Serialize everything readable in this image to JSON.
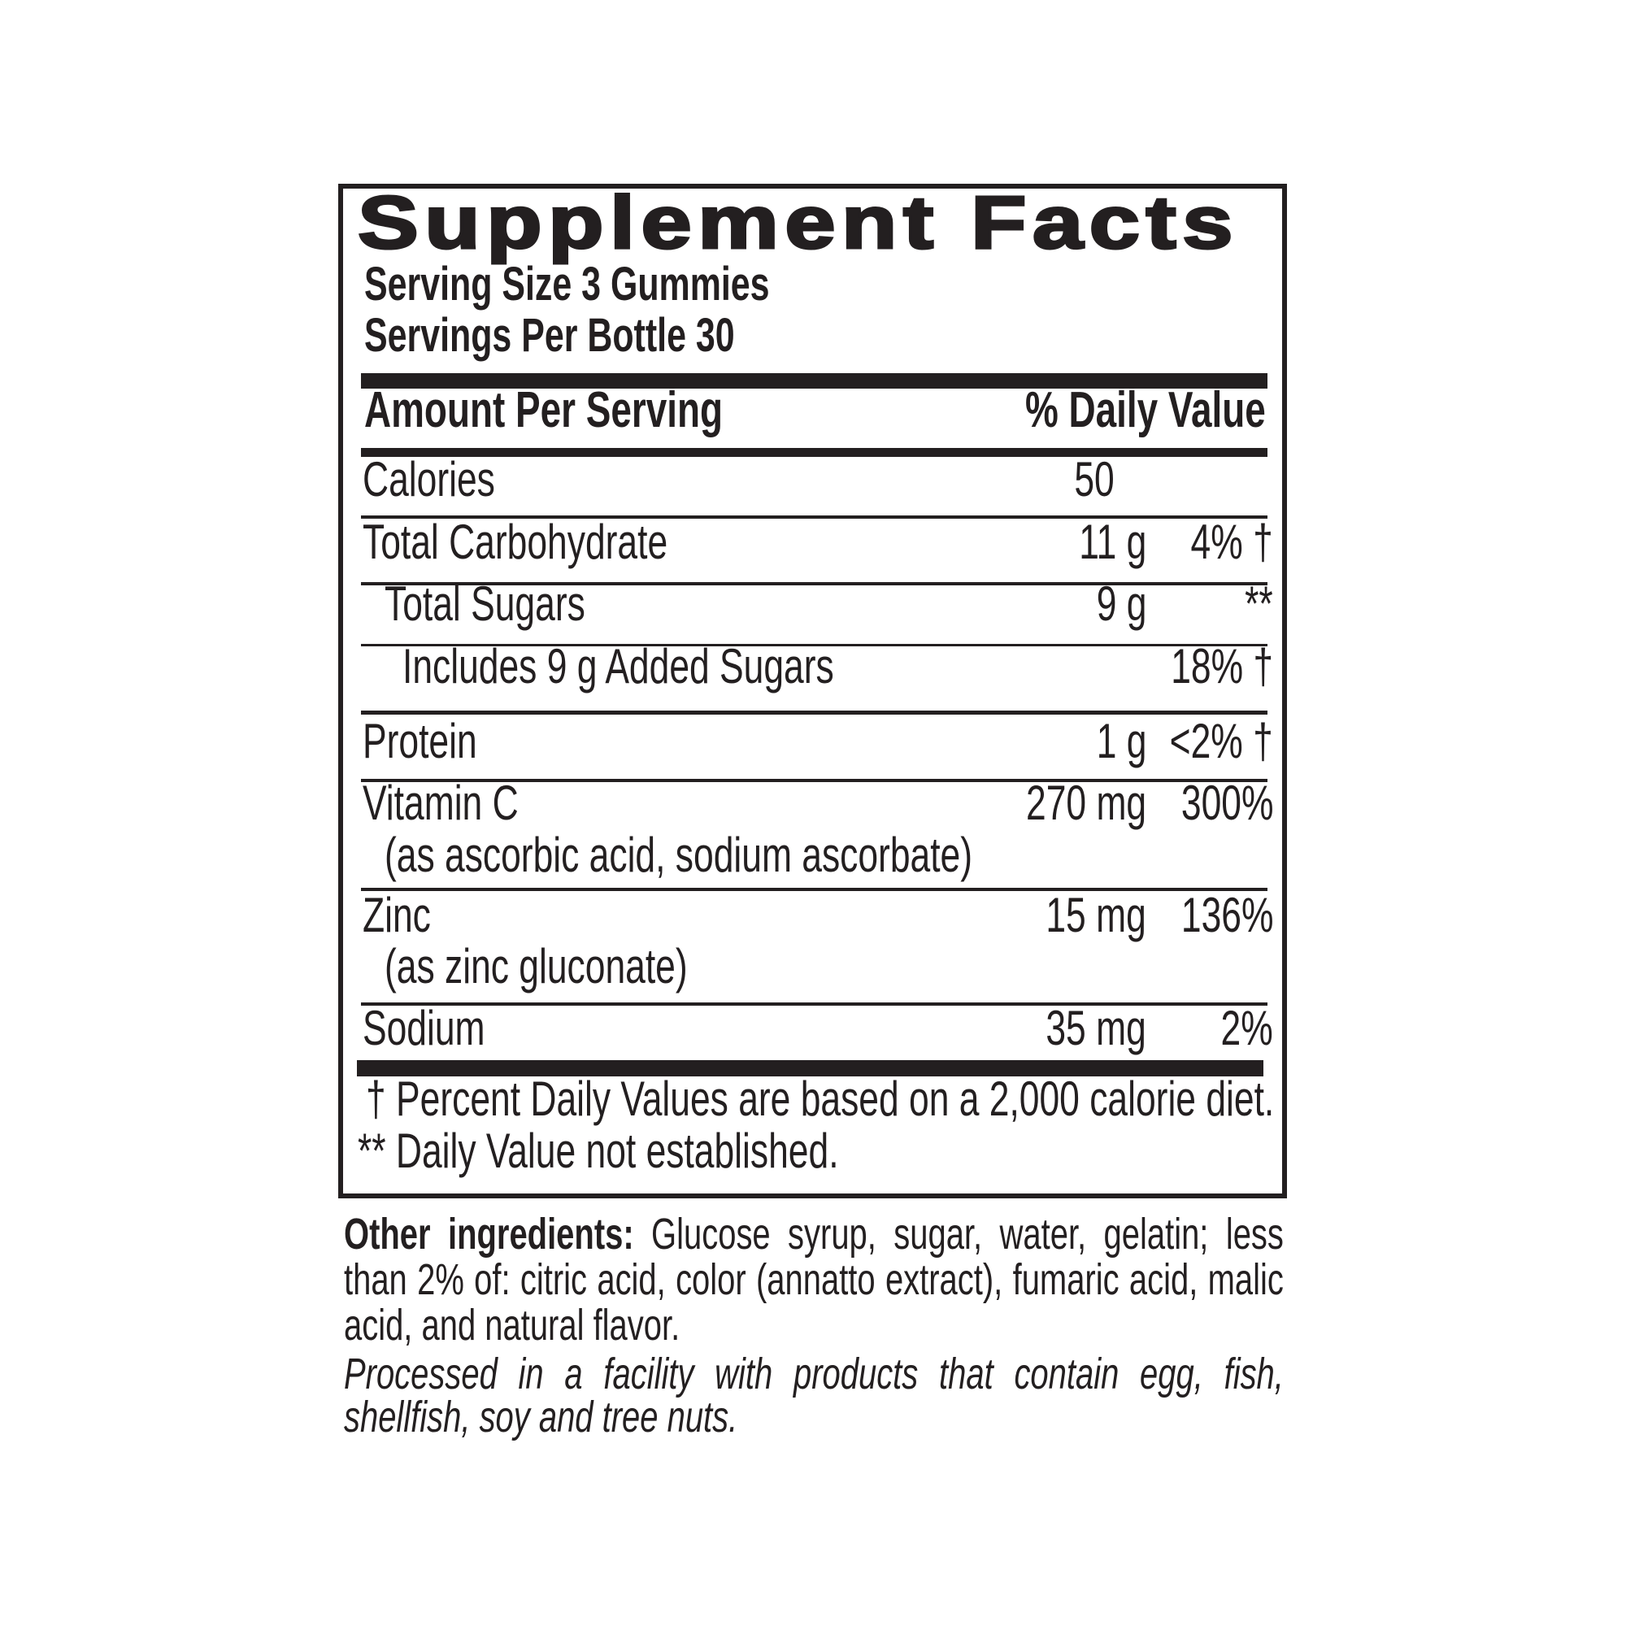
{
  "title": "Supplement Facts",
  "serving_size": "Serving Size 3 Gummies",
  "servings_per_container": "Servings Per Bottle 30",
  "header": {
    "amount": "Amount Per Serving",
    "daily_value": "% Daily Value"
  },
  "calories": {
    "label": "Calories",
    "amount": "50"
  },
  "rows": [
    {
      "label": "Total Carbohydrate",
      "amount": "11 g",
      "dv": "4% †"
    },
    {
      "label": "Total Sugars",
      "amount": "9 g",
      "dv": "**"
    },
    {
      "label": "Includes 9 g Added Sugars",
      "amount": "",
      "dv": "18% †"
    },
    {
      "label": "Protein",
      "amount": "1 g",
      "dv": "<2% †"
    },
    {
      "label": "Vitamin C",
      "sub": "(as ascorbic acid, sodium ascorbate)",
      "amount": "270 mg",
      "dv": "300%"
    },
    {
      "label": "Zinc",
      "sub": "(as zinc gluconate)",
      "amount": "15 mg",
      "dv": "136%"
    },
    {
      "label": "Sodium",
      "amount": "35 mg",
      "dv": "2%"
    }
  ],
  "footnotes": [
    "† Percent Daily Values are based on a 2,000 calorie diet.",
    "** Daily Value not established."
  ],
  "other_ingredients": {
    "label": "Other ingredients:",
    "text": " Glucose syrup, sugar, water, gelatin; less than 2% of: citric acid, color (annatto extract), fumaric acid, malic acid, and natural flavor."
  },
  "allergen_statement": "Processed in a facility with products that contain egg, fish, shellfish, soy and tree nuts.",
  "colors": {
    "ink": "#231f20",
    "background": "#ffffff"
  }
}
